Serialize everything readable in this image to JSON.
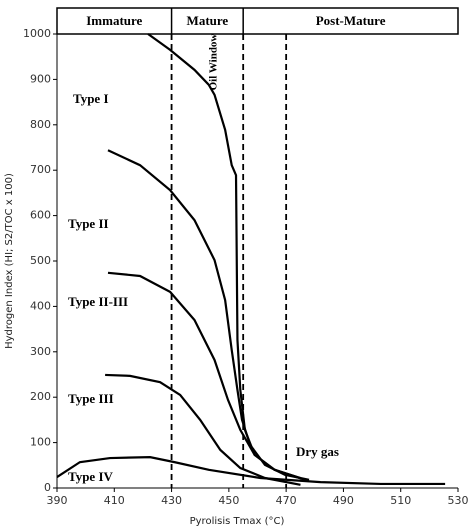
{
  "chart_data": {
    "type": "line",
    "x_label": "Pyrolisis Tmax (°C)",
    "y_label": "Hydrogen Index (HI; S2/TOC x 100)",
    "xlim": [
      390,
      530
    ],
    "xticks": [
      390,
      410,
      430,
      450,
      470,
      490,
      510,
      530
    ],
    "ylim": [
      0,
      1000
    ],
    "yticks": [
      0,
      100,
      200,
      300,
      400,
      500,
      600,
      700,
      800,
      900,
      1000
    ],
    "zones": {
      "labels": [
        "Immature",
        "Mature",
        "Post-Mature"
      ],
      "boundaries": [
        430,
        455
      ]
    },
    "dashed_lines": [
      430,
      455,
      470
    ],
    "annotations": [
      "Oil Window",
      "Dry gas"
    ],
    "series": [
      {
        "name": "Type I",
        "color": "#000000",
        "x": [
          421.8,
          429.5,
          438,
          443,
          445,
          448.7,
          451,
          452.5,
          453,
          454,
          455.6,
          459,
          466,
          475
        ],
        "values": [
          1000,
          965,
          921,
          888,
          866,
          789,
          711,
          689,
          326,
          216,
          128,
          73,
          40,
          22
        ]
      },
      {
        "name": "Type II",
        "color": "#000000",
        "x": [
          407.8,
          419,
          429.5,
          438,
          445,
          448.7,
          451,
          453,
          454.6,
          457.4,
          462.6,
          469.6,
          478
        ],
        "values": [
          744,
          711,
          656,
          590,
          502,
          414,
          304,
          216,
          150,
          95,
          51,
          29,
          18
        ]
      },
      {
        "name": "Type II-III",
        "color": "#000000",
        "x": [
          407.8,
          419,
          429.5,
          438,
          445,
          449.7,
          454,
          459,
          466,
          476.6
        ],
        "values": [
          474,
          467,
          432,
          370,
          282,
          194,
          128,
          73,
          40,
          18
        ]
      },
      {
        "name": "Type III",
        "color": "#000000",
        "x": [
          406.8,
          415.5,
          426,
          433,
          440,
          447,
          454,
          462.6,
          475
        ],
        "values": [
          249,
          247,
          233,
          205,
          150,
          84,
          44,
          22,
          7
        ]
      },
      {
        "name": "Type IV",
        "color": "#000000",
        "x": [
          390,
          398,
          408.5,
          422.5,
          431,
          443,
          461,
          482,
          503,
          525.5
        ],
        "values": [
          24,
          57,
          66,
          68,
          57,
          40,
          22,
          13,
          9,
          9
        ]
      }
    ]
  }
}
